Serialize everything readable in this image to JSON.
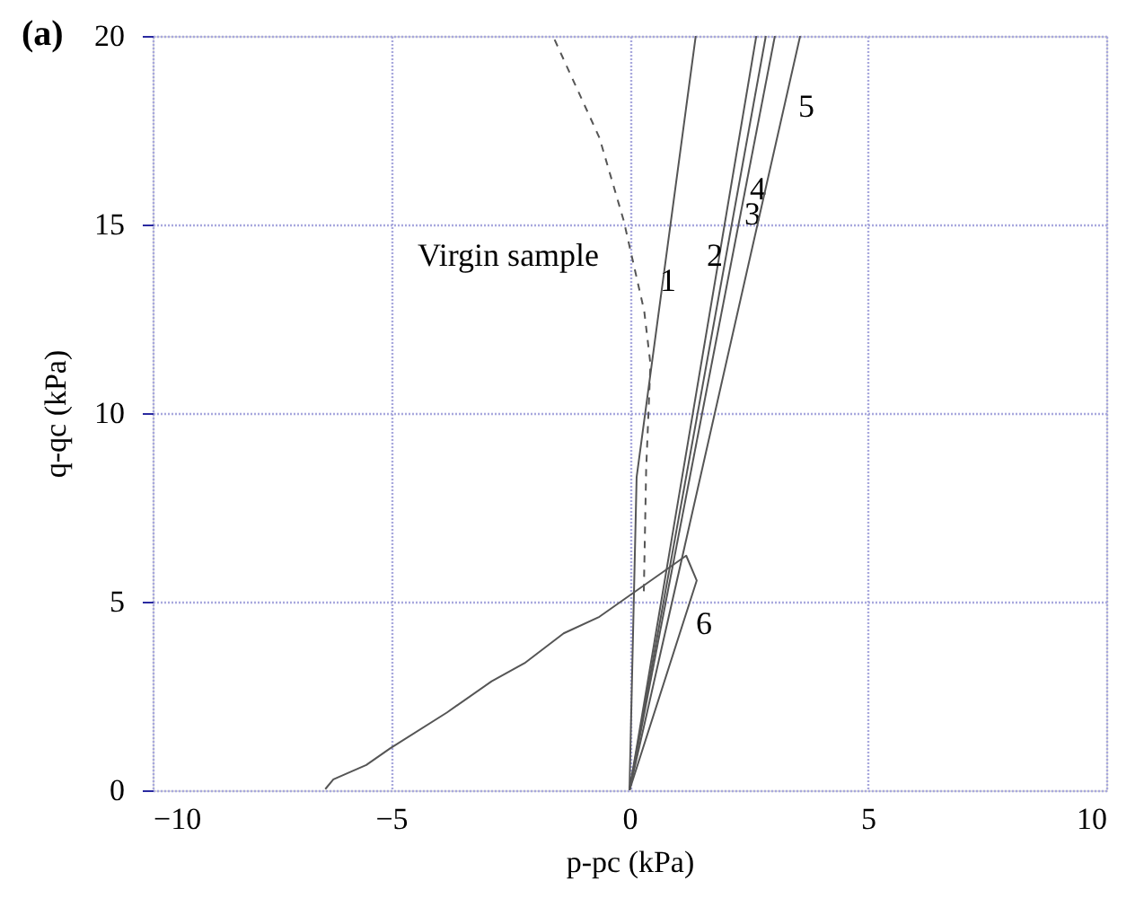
{
  "chart_data": {
    "type": "line",
    "title": "(a)",
    "xlabel": "p-pc (kPa)",
    "ylabel": "q-qc (kPa)",
    "xlim": [
      -10,
      10
    ],
    "xticks": [
      -10,
      -5,
      0,
      5,
      10
    ],
    "ylim": [
      0,
      20
    ],
    "yticks": [
      0,
      5,
      10,
      15,
      20
    ],
    "grid": true,
    "marker": "none",
    "series": [
      {
        "name": "1",
        "color": "#555555",
        "line_style": "solid",
        "x": [
          0,
          0.15,
          1.39
        ],
        "values": [
          0,
          8.3,
          20
        ]
      },
      {
        "name": "2",
        "color": "#555555",
        "line_style": "solid",
        "x": [
          0,
          2.66
        ],
        "values": [
          0,
          20
        ]
      },
      {
        "name": "3",
        "color": "#555555",
        "line_style": "solid",
        "x": [
          0,
          2.86
        ],
        "values": [
          0,
          20
        ]
      },
      {
        "name": "4",
        "color": "#555555",
        "line_style": "solid",
        "x": [
          0,
          3.05
        ],
        "values": [
          0,
          20
        ]
      },
      {
        "name": "5",
        "color": "#555555",
        "line_style": "solid",
        "x": [
          0,
          3.58
        ],
        "values": [
          0,
          20
        ]
      },
      {
        "name": "6",
        "color": "#555555",
        "line_style": "solid",
        "x": [
          -6.38,
          -6.21,
          -5.52,
          -5.02,
          -3.83,
          -2.89,
          -2.2,
          -1.38,
          -0.63,
          1.19,
          1.41,
          0
        ],
        "values": [
          0.03,
          0.29,
          0.67,
          1.11,
          2.06,
          2.89,
          3.37,
          4.16,
          4.6,
          6.22,
          5.56,
          0
        ]
      },
      {
        "name": "Virgin sample",
        "color": "#555555",
        "line_style": "dashed",
        "x": [
          -1.57,
          -0.63,
          -0.12,
          0.31,
          0.44,
          0.35,
          0.3
        ],
        "values": [
          19.9,
          17.3,
          15.1,
          12.7,
          11.3,
          8.5,
          5.2
        ]
      }
    ]
  }
}
